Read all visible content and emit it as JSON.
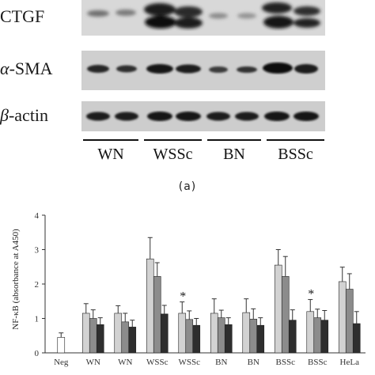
{
  "blot": {
    "rows": [
      {
        "label_prefix": "",
        "label_main": "CTGF"
      },
      {
        "label_prefix": "α",
        "label_main": "-SMA"
      },
      {
        "label_prefix": "β",
        "label_main": "-actin"
      }
    ],
    "groups": [
      "WN",
      "WSSc",
      "BN",
      "BSSc"
    ],
    "panel_label": "(a)"
  },
  "chart_data": {
    "type": "bar",
    "ylabel": "NF-κB (absorbance at A450)",
    "ylim": [
      0,
      4
    ],
    "yticks": [
      0,
      1,
      2,
      3,
      4
    ],
    "categories": [
      "Neg",
      "WN",
      "WN",
      "WSSc",
      "WSSc",
      "BN",
      "BN",
      "BSSc",
      "BSSc",
      "HeLa"
    ],
    "series_colors": [
      "#d2d2d2",
      "#8c8c8c",
      "#2e2e2e"
    ],
    "groups": [
      {
        "values": [
          0.45
        ],
        "errors": [
          0.13
        ],
        "colors": [
          "#ffffff"
        ]
      },
      {
        "values": [
          1.15,
          1.0,
          0.82
        ],
        "errors": [
          0.28,
          0.25,
          0.2
        ]
      },
      {
        "values": [
          1.15,
          0.9,
          0.75
        ],
        "errors": [
          0.22,
          0.25,
          0.2
        ]
      },
      {
        "values": [
          2.73,
          2.22,
          1.13
        ],
        "errors": [
          0.62,
          0.4,
          0.25
        ]
      },
      {
        "values": [
          1.15,
          0.97,
          0.8
        ],
        "errors": [
          0.33,
          0.25,
          0.2
        ],
        "star": "*"
      },
      {
        "values": [
          1.15,
          1.02,
          0.82
        ],
        "errors": [
          0.42,
          0.22,
          0.2
        ]
      },
      {
        "values": [
          1.17,
          0.98,
          0.8
        ],
        "errors": [
          0.4,
          0.3,
          0.22
        ]
      },
      {
        "values": [
          2.55,
          2.22,
          0.95
        ],
        "errors": [
          0.45,
          0.58,
          0.3
        ]
      },
      {
        "values": [
          1.2,
          1.02,
          0.95
        ],
        "errors": [
          0.35,
          0.25,
          0.28
        ],
        "star": "*"
      },
      {
        "values": [
          2.07,
          1.85,
          0.85
        ],
        "errors": [
          0.42,
          0.45,
          0.35
        ]
      }
    ]
  }
}
